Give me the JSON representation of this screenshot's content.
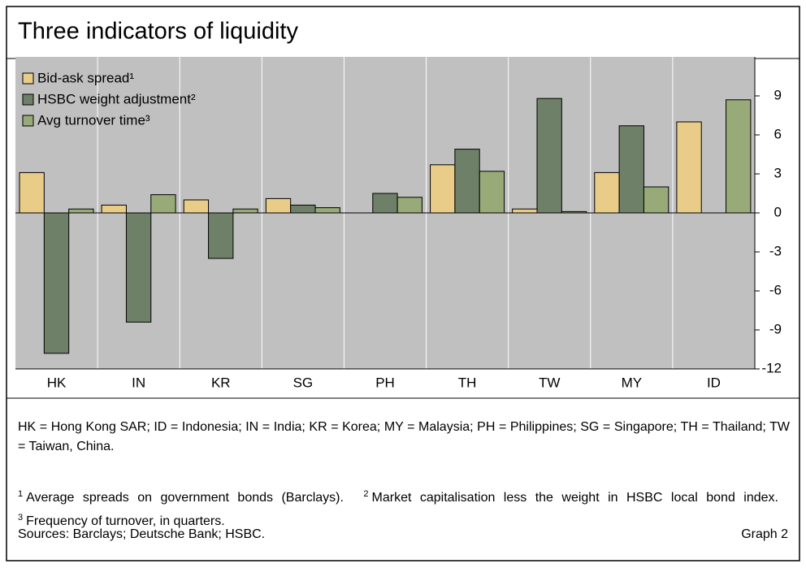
{
  "chart_data": {
    "type": "bar",
    "title": "Three indicators of liquidity",
    "categories": [
      "HK",
      "IN",
      "KR",
      "SG",
      "PH",
      "TH",
      "TW",
      "MY",
      "ID"
    ],
    "series": [
      {
        "name": "Bid-ask spread¹",
        "color": "#e8cc88",
        "values": [
          3.1,
          0.6,
          1.0,
          1.1,
          0,
          3.7,
          0.3,
          3.1,
          7.0
        ]
      },
      {
        "name": "HSBC weight adjustment²",
        "color": "#6e8068",
        "values": [
          -10.8,
          -8.4,
          -3.5,
          0.6,
          1.5,
          4.9,
          8.8,
          6.7,
          0
        ]
      },
      {
        "name": "Avg turnover time³",
        "color": "#98aa78",
        "values": [
          0.3,
          1.4,
          0.3,
          0.4,
          1.2,
          3.2,
          0.1,
          2.0,
          8.7
        ]
      }
    ],
    "ylim": [
      -12,
      12
    ],
    "yticks": [
      -12,
      -9,
      -6,
      -3,
      0,
      3,
      6,
      9
    ],
    "legend": "upper left",
    "grid": true,
    "note": "HK = Hong Kong SAR; ID = Indonesia; IN = India; KR = Korea; MY = Malaysia; PH = Philippines; SG = Singapore; TH = Thailand; TW = Taiwan, China.",
    "footnotes": [
      {
        "mark": "1",
        "text": "Average spreads on government bonds (Barclays)."
      },
      {
        "mark": "2",
        "text": "Market capitalisation less the weight in HSBC local bond index."
      },
      {
        "mark": "3",
        "text": "Frequency of turnover, in quarters."
      }
    ],
    "sources": "Sources: Barclays; Deutsche Bank; HSBC.",
    "graph_label": "Graph 2"
  }
}
